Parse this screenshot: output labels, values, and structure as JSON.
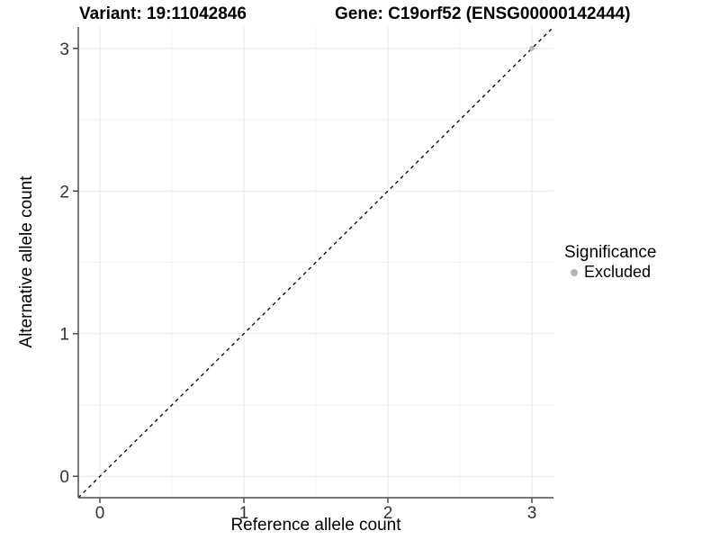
{
  "chart_data": {
    "type": "scatter",
    "titles": {
      "left": "Variant: 19:11042846",
      "right": "Gene: C19orf52 (ENSG00000142444)"
    },
    "xlabel": "Reference allele count",
    "ylabel": "Alternative allele count",
    "xlim": [
      -0.15,
      3.15
    ],
    "ylim": [
      -0.15,
      3.15
    ],
    "xticks": [
      0,
      1,
      2,
      3
    ],
    "yticks": [
      0,
      1,
      2,
      3
    ],
    "xminor": [
      0.5,
      1.5,
      2.5
    ],
    "yminor": [
      0.5,
      1.5,
      2.5
    ],
    "grid": true,
    "identity_line": {
      "style": "dashed",
      "slope": 1,
      "intercept": 0,
      "color": "#000000"
    },
    "series": [
      {
        "name": "Excluded",
        "color": "#b5b5b5",
        "points": [
          {
            "x": 3,
            "y": 3
          }
        ]
      }
    ],
    "legend": {
      "title": "Significance",
      "position": "right",
      "items": [
        {
          "label": "Excluded",
          "color": "#b5b5b5"
        }
      ]
    },
    "colors": {
      "background": "#ffffff",
      "grid_major": "#e8e8e8",
      "grid_minor": "#f2f2f2",
      "axis_line": "#4d4d4d",
      "tick_mark": "#4d4d4d",
      "tick_label": "#333333"
    }
  }
}
